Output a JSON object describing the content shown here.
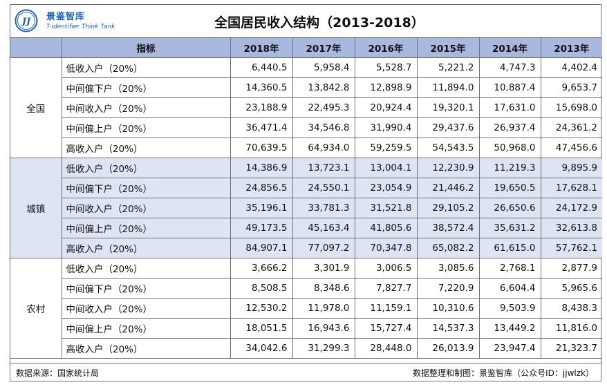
{
  "header": {
    "brand_cn": "景鉴智库",
    "brand_en": "T-identifier Think Tank",
    "logo_text": "JJ",
    "title": "全国居民收入结构（2013-2018）"
  },
  "table": {
    "columns": [
      "指标",
      "2018年",
      "2017年",
      "2016年",
      "2015年",
      "2014年",
      "2013年"
    ],
    "groups": [
      {
        "name": "全国",
        "rows": [
          {
            "label": "低收入户（20%）",
            "values": [
              "6,440.5",
              "5,958.4",
              "5,528.7",
              "5,221.2",
              "4,747.3",
              "4,402.4"
            ]
          },
          {
            "label": "中间偏下户（20%）",
            "values": [
              "14,360.5",
              "13,842.8",
              "12,898.9",
              "11,894.0",
              "10,887.4",
              "9,653.7"
            ]
          },
          {
            "label": "中间收入户（20%）",
            "values": [
              "23,188.9",
              "22,495.3",
              "20,924.4",
              "19,320.1",
              "17,631.0",
              "15,698.0"
            ]
          },
          {
            "label": "中间偏上户（20%）",
            "values": [
              "36,471.4",
              "34,546.8",
              "31,990.4",
              "29,437.6",
              "26,937.4",
              "24,361.2"
            ]
          },
          {
            "label": "高收入户（20%）",
            "values": [
              "70,639.5",
              "64,934.0",
              "59,259.5",
              "54,543.5",
              "50,968.0",
              "47,456.6"
            ]
          }
        ]
      },
      {
        "name": "城镇",
        "rows": [
          {
            "label": "低收入户（20%）",
            "values": [
              "14,386.9",
              "13,723.1",
              "13,004.1",
              "12,230.9",
              "11,219.3",
              "9,895.9"
            ]
          },
          {
            "label": "中间偏下户（20%）",
            "values": [
              "24,856.5",
              "24,550.1",
              "23,054.9",
              "21,446.2",
              "19,650.5",
              "17,628.1"
            ]
          },
          {
            "label": "中间收入户（20%）",
            "values": [
              "35,196.1",
              "33,781.3",
              "31,521.8",
              "29,105.2",
              "26,650.6",
              "24,172.9"
            ]
          },
          {
            "label": "中间偏上户（20%）",
            "values": [
              "49,173.5",
              "45,163.4",
              "41,805.6",
              "38,572.4",
              "35,631.2",
              "32,613.8"
            ]
          },
          {
            "label": "高收入户（20%）",
            "values": [
              "84,907.1",
              "77,097.2",
              "70,347.8",
              "65,082.2",
              "61,615.0",
              "57,762.1"
            ]
          }
        ]
      },
      {
        "name": "农村",
        "rows": [
          {
            "label": "低收入户（20%）",
            "values": [
              "3,666.2",
              "3,301.9",
              "3,006.5",
              "3,085.6",
              "2,768.1",
              "2,877.9"
            ]
          },
          {
            "label": "中间偏下户（20%）",
            "values": [
              "8,508.5",
              "8,348.6",
              "7,827.7",
              "7,220.9",
              "6,604.4",
              "5,965.6"
            ]
          },
          {
            "label": "中间收入户（20%）",
            "values": [
              "12,530.2",
              "11,978.0",
              "11,159.1",
              "10,310.6",
              "9,503.9",
              "8,438.3"
            ]
          },
          {
            "label": "中间偏上户（20%）",
            "values": [
              "18,051.5",
              "16,943.6",
              "15,727.4",
              "14,537.3",
              "13,449.2",
              "11,816.0"
            ]
          },
          {
            "label": "高收入户（20%）",
            "values": [
              "34,042.6",
              "31,299.3",
              "28,448.0",
              "26,013.9",
              "23,947.4",
              "21,323.7"
            ]
          }
        ]
      }
    ]
  },
  "footer": {
    "source": "数据来源：国家统计局",
    "credit": "数据整理和制图：景鉴智库（公众号ID：jjwlzk）"
  },
  "colors": {
    "brand": "#1f63b3",
    "header_fill": "#a9b8de",
    "band_fill": "#dde4f3",
    "border": "#6f6f6f"
  }
}
